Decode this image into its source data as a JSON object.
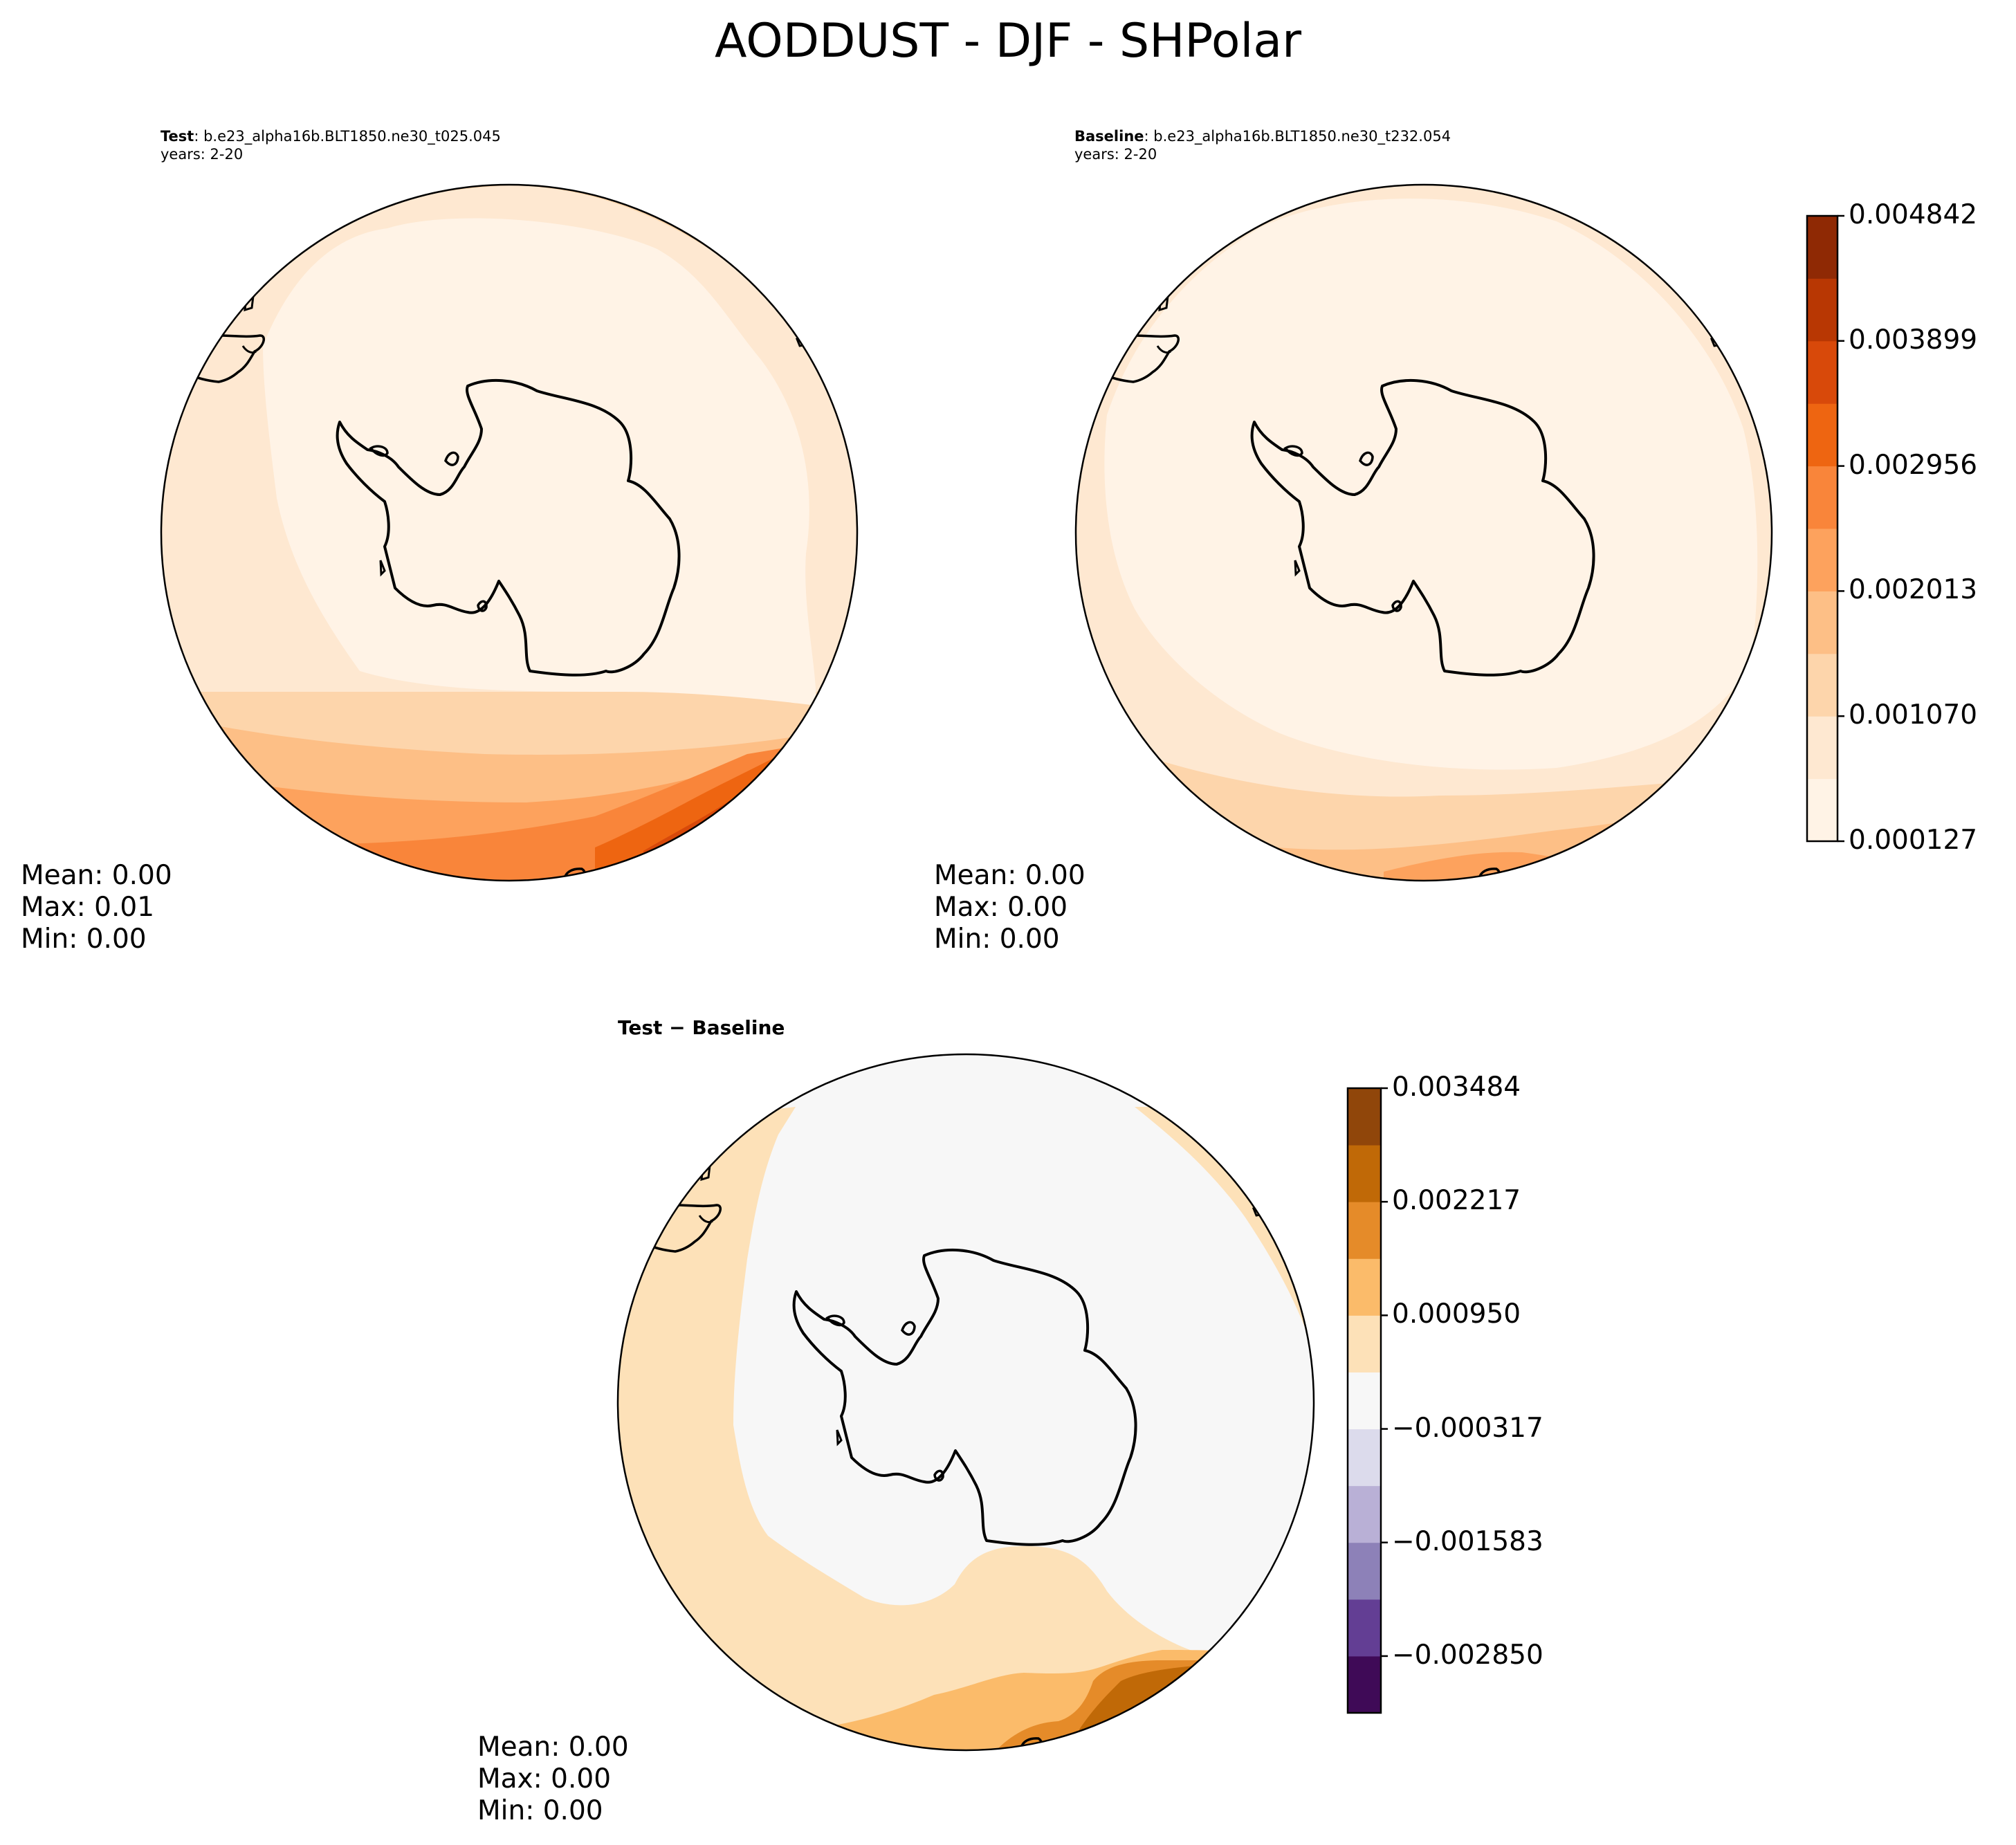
{
  "title": "AODDUST - DJF - SHPolar",
  "panels": [
    {
      "id": "test",
      "label": "Test",
      "case": "b.e23_alpha16b.BLT1850.ne30_t025.045",
      "years": "years: 2-20",
      "stats": {
        "mean": "Mean:  0.00",
        "max": "Max:  0.01",
        "min": "Min:  0.00"
      }
    },
    {
      "id": "baseline",
      "label": "Baseline",
      "case": "b.e23_alpha16b.BLT1850.ne30_t232.054",
      "years": "years: 2-20",
      "stats": {
        "mean": "Mean:  0.00",
        "max": "Max:  0.00",
        "min": "Min:  0.00"
      }
    },
    {
      "id": "diff",
      "label": "Test − Baseline",
      "stats": {
        "mean": "Mean:  0.00",
        "max": "Max:  0.00",
        "min": "Min:  0.00"
      }
    }
  ],
  "colorbars": {
    "main": {
      "colormap": "Oranges",
      "ticks": [
        "0.000127",
        "0.001070",
        "0.002013",
        "0.002956",
        "0.003899",
        "0.004842"
      ],
      "colors": [
        "#fff3e6",
        "#fee8d1",
        "#fdd5ab",
        "#fdbf86",
        "#fda25d",
        "#f9853a",
        "#ee6511",
        "#d8490a",
        "#b83703",
        "#8f2904"
      ]
    },
    "diff": {
      "colormap": "PuOr_r",
      "ticks": [
        "−0.002850",
        "−0.001583",
        "−0.000317",
        "0.000950",
        "0.002217",
        "0.003484"
      ],
      "colors": [
        "#3f0a57",
        "#633e94",
        "#8d81b8",
        "#b9b0d6",
        "#dcdbec",
        "#f7f7f7",
        "#fde1b8",
        "#fbbb6a",
        "#e58b29",
        "#c06907",
        "#90460a"
      ]
    }
  }
}
